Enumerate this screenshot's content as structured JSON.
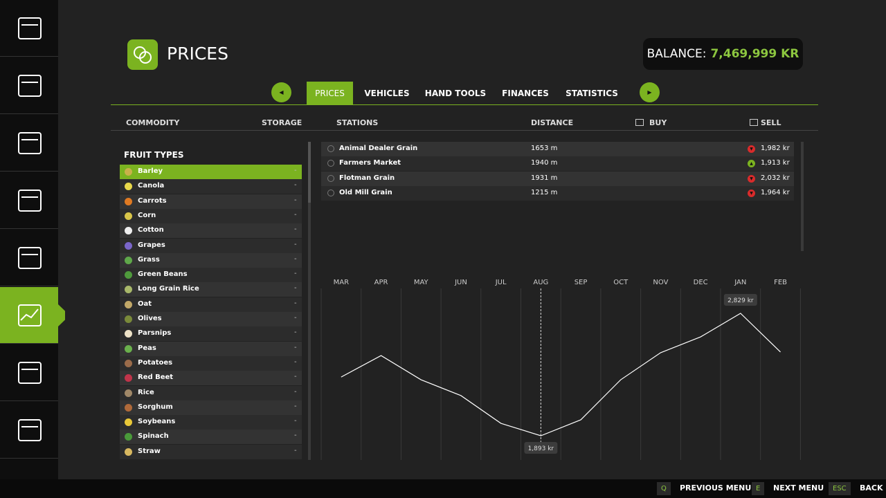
{
  "header": {
    "title": "PRICES",
    "balance_label": "BALANCE:",
    "balance_value": "7,469,999 KR"
  },
  "tabs": [
    "PRICES",
    "VEHICLES",
    "HAND TOOLS",
    "FINANCES",
    "STATISTICS"
  ],
  "active_tab": 0,
  "columns": {
    "commodity": "COMMODITY",
    "storage": "STORAGE",
    "stations": "STATIONS",
    "distance": "DISTANCE",
    "buy": "BUY",
    "sell": "SELL"
  },
  "fruit_list": {
    "title": "FRUIT TYPES",
    "selected": 0,
    "items": [
      {
        "name": "Barley",
        "storage": "-"
      },
      {
        "name": "Canola",
        "storage": "-"
      },
      {
        "name": "Carrots",
        "storage": "-"
      },
      {
        "name": "Corn",
        "storage": "-"
      },
      {
        "name": "Cotton",
        "storage": "-"
      },
      {
        "name": "Grapes",
        "storage": "-"
      },
      {
        "name": "Grass",
        "storage": "-"
      },
      {
        "name": "Green Beans",
        "storage": "-"
      },
      {
        "name": "Long Grain Rice",
        "storage": "-"
      },
      {
        "name": "Oat",
        "storage": "-"
      },
      {
        "name": "Olives",
        "storage": "-"
      },
      {
        "name": "Parsnips",
        "storage": "-"
      },
      {
        "name": "Peas",
        "storage": "-"
      },
      {
        "name": "Potatoes",
        "storage": "-"
      },
      {
        "name": "Red Beet",
        "storage": "-"
      },
      {
        "name": "Rice",
        "storage": "-"
      },
      {
        "name": "Sorghum",
        "storage": "-"
      },
      {
        "name": "Soybeans",
        "storage": "-"
      },
      {
        "name": "Spinach",
        "storage": "-"
      },
      {
        "name": "Straw",
        "storage": "-"
      }
    ]
  },
  "stations": [
    {
      "name": "Animal Dealer Grain",
      "distance": "1653 m",
      "sell": "1,982 kr",
      "trend": "down"
    },
    {
      "name": "Farmers Market",
      "distance": "1940 m",
      "sell": "1,913 kr",
      "trend": "up"
    },
    {
      "name": "Flotman Grain",
      "distance": "1931 m",
      "sell": "2,032 kr",
      "trend": "down"
    },
    {
      "name": "Old Mill Grain",
      "distance": "1215 m",
      "sell": "1,964 kr",
      "trend": "down"
    }
  ],
  "price_chart": {
    "type": "line",
    "categories": [
      "MAR",
      "APR",
      "MAY",
      "JUN",
      "JUL",
      "AUG",
      "SEP",
      "OCT",
      "NOV",
      "DEC",
      "JAN",
      "FEB"
    ],
    "values": [
      2342,
      2506,
      2321,
      2200,
      1988,
      1893,
      2015,
      2321,
      2528,
      2649,
      2829,
      2533
    ],
    "value_labels": [
      null,
      null,
      null,
      null,
      null,
      "1,893 kr",
      null,
      null,
      null,
      null,
      "2,829 kr",
      null
    ],
    "color": "#ffffff",
    "marker_index": 5
  },
  "footer": [
    {
      "key": "Q",
      "label": "PREVIOUS MENU"
    },
    {
      "key": "E",
      "label": "NEXT MENU"
    },
    {
      "key": "ESC",
      "label": "BACK"
    }
  ]
}
